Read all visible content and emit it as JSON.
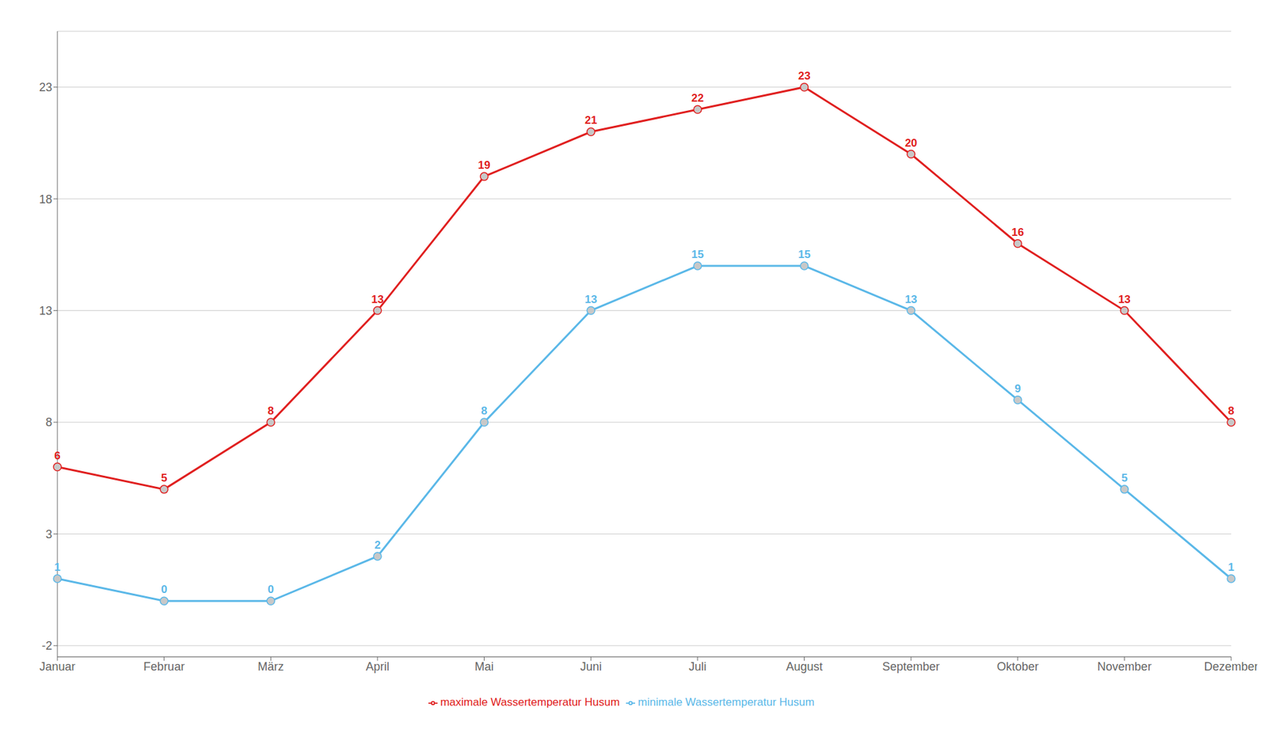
{
  "chart_data": {
    "type": "line",
    "categories": [
      "Januar",
      "Februar",
      "März",
      "April",
      "Mai",
      "Juni",
      "Juli",
      "August",
      "September",
      "Oktober",
      "November",
      "Dezember"
    ],
    "series": [
      {
        "name": "minimale Wassertemperatur Husum",
        "color": "#5BB8E8",
        "marker": "circle",
        "values": [
          1,
          0,
          0,
          2,
          8,
          13,
          15,
          15,
          13,
          9,
          5,
          1
        ]
      },
      {
        "name": "maximale Wassertemperatur Husum",
        "color": "#E02020",
        "marker": "circle",
        "values": [
          6,
          5,
          8,
          13,
          19,
          21,
          22,
          23,
          20,
          16,
          13,
          8
        ]
      }
    ],
    "ylim": [
      -2.5,
      25.5
    ],
    "yticks": [
      -2,
      3,
      8,
      13,
      18,
      23
    ],
    "grid": true,
    "legend": "bottom",
    "data_labels": true
  }
}
